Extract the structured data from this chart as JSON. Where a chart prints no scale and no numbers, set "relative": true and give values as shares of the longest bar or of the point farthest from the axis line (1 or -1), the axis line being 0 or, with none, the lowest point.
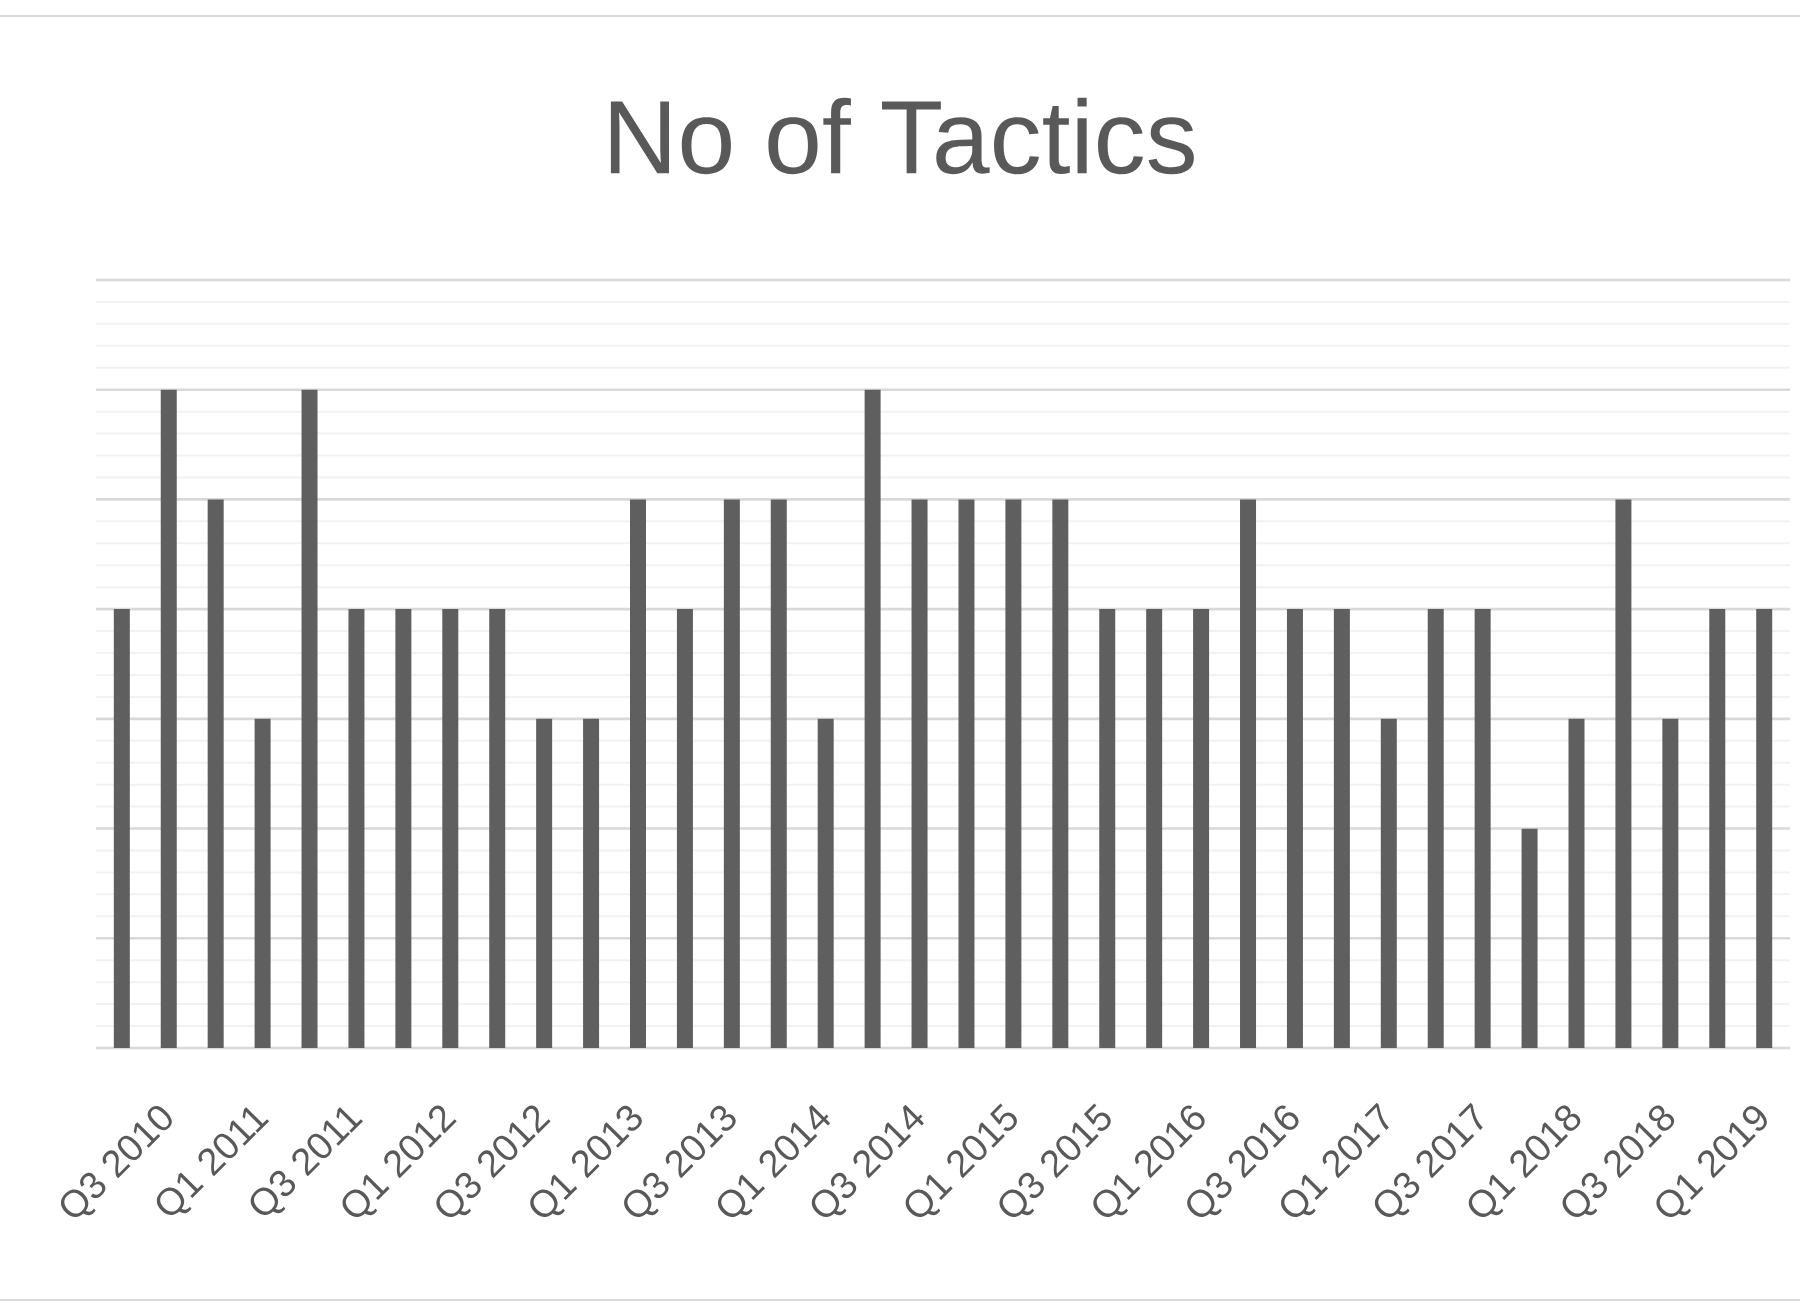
{
  "chart_data": {
    "type": "bar",
    "title": "No of Tactics",
    "categories": [
      null,
      "Q3 2010",
      null,
      "Q1 2011",
      null,
      "Q3 2011",
      null,
      "Q1 2012",
      null,
      "Q3 2012",
      null,
      "Q1 2013",
      null,
      "Q3 2013",
      null,
      "Q1 2014",
      null,
      "Q3 2014",
      null,
      "Q1 2015",
      null,
      "Q3 2015",
      null,
      "Q1 2016",
      null,
      "Q3 2016",
      null,
      "Q1 2017",
      null,
      "Q3 2017",
      null,
      "Q1 2018",
      null,
      "Q3 2018",
      null,
      "Q1 2019"
    ],
    "values": [
      0.667,
      1,
      0.833,
      0.5,
      1,
      0.667,
      0.667,
      0.667,
      0.667,
      0.5,
      0.5,
      0.833,
      0.667,
      0.833,
      0.833,
      0.5,
      1,
      0.833,
      0.833,
      0.833,
      0.833,
      0.667,
      0.667,
      0.667,
      0.833,
      0.667,
      0.667,
      0.5,
      0.667,
      0.667,
      0.333,
      0.5,
      0.833,
      0.5,
      0.667,
      0.667
    ],
    "color": "#5f5f5f",
    "relative": true,
    "grid": true
  }
}
